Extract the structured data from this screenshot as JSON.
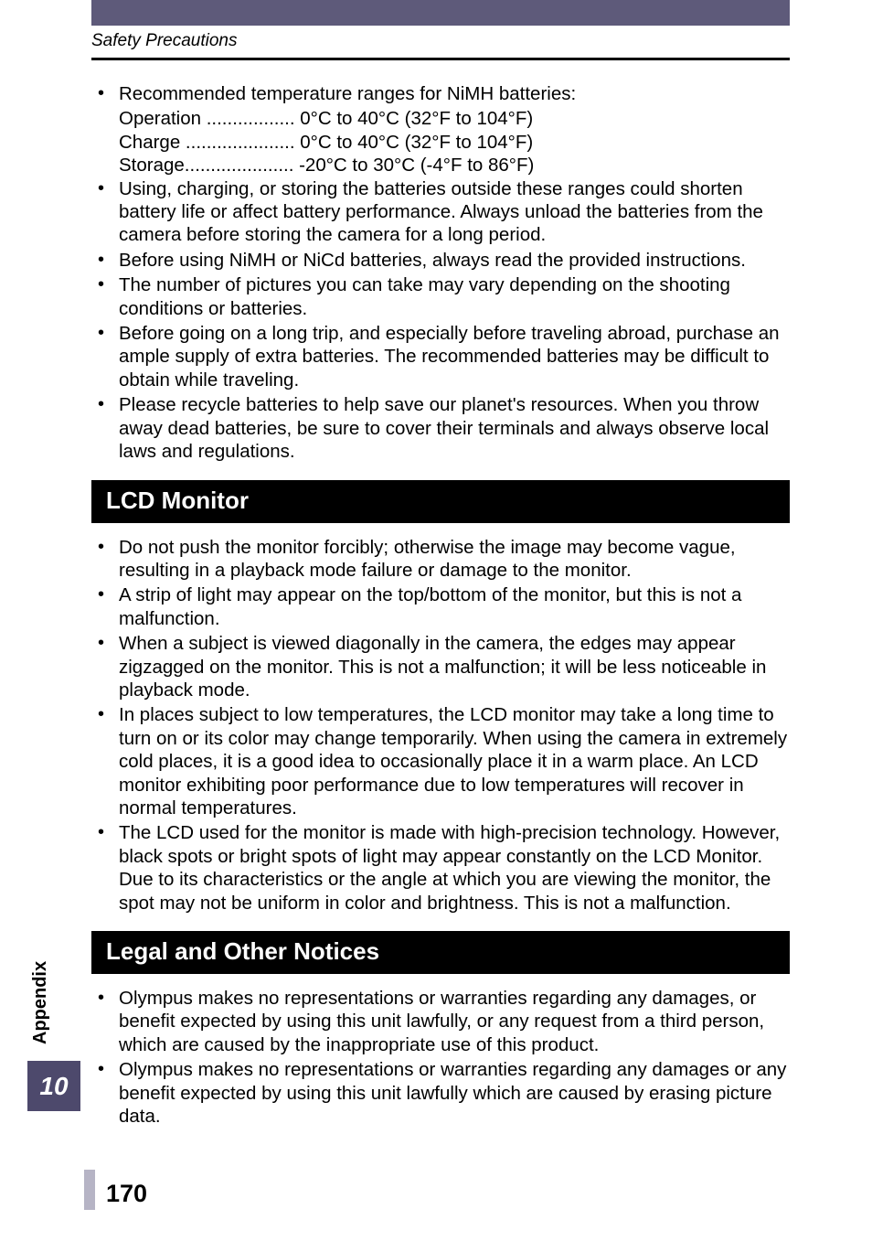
{
  "header": {
    "section_title": "Safety Precautions"
  },
  "list1": {
    "items": [
      {
        "lead": "Recommended temperature ranges for NiMH batteries:",
        "sublines": [
          "Operation ................. 0°C to 40°C (32°F to 104°F)",
          "Charge ..................... 0°C to 40°C (32°F to 104°F)",
          "Storage..................... -20°C to 30°C (-4°F to 86°F)"
        ]
      },
      {
        "lead": "Using, charging, or storing the batteries outside these ranges could shorten battery life or affect battery performance. Always unload the batteries from the camera before storing the camera for a long period."
      },
      {
        "lead": "Before using NiMH or NiCd batteries, always read the provided instructions."
      },
      {
        "lead": "The number of pictures you can take may vary depending on the shooting conditions or batteries."
      },
      {
        "lead": "Before going on a long trip, and especially before traveling abroad, purchase an ample supply of extra batteries. The recommended batteries may be difficult to obtain while traveling."
      },
      {
        "lead": "Please recycle batteries to help save our planet's resources. When you throw away dead batteries, be sure to cover their terminals and always observe local laws and regulations."
      }
    ]
  },
  "heading1": "LCD Monitor",
  "list2": {
    "items": [
      {
        "lead": "Do not push the monitor forcibly; otherwise the image may become vague, resulting in a playback mode failure or damage to the monitor."
      },
      {
        "lead": "A strip of light may appear on the top/bottom of the monitor, but this is not a malfunction."
      },
      {
        "lead": "When a subject is viewed diagonally in the camera, the edges may appear zigzagged on the monitor. This is not a malfunction; it will be less noticeable in playback mode."
      },
      {
        "lead": "In places subject to low temperatures, the LCD monitor may take a long time to turn on or its color may change temporarily. When using the camera in extremely cold places, it is a good idea to occasionally place it in a warm place. An LCD monitor exhibiting poor performance due to low temperatures will recover in normal temperatures."
      },
      {
        "lead": "The LCD used for the monitor is made with high-precision technology. However, black spots or bright spots of light may appear constantly on the LCD Monitor. Due to its characteristics or the angle at which you are viewing the monitor, the spot may not be uniform in color and brightness. This is not a malfunction."
      }
    ]
  },
  "heading2": "Legal and Other Notices",
  "list3": {
    "items": [
      {
        "lead": "Olympus makes no representations or warranties regarding any damages, or benefit expected by using this unit lawfully, or any request from a third person, which are caused by the inappropriate use of this product."
      },
      {
        "lead": "Olympus makes no representations or warranties regarding any damages or any benefit expected by using this unit lawfully which are caused by erasing picture data."
      }
    ]
  },
  "sidebar": {
    "label": "Appendix",
    "chapter": "10"
  },
  "page_number": "170"
}
